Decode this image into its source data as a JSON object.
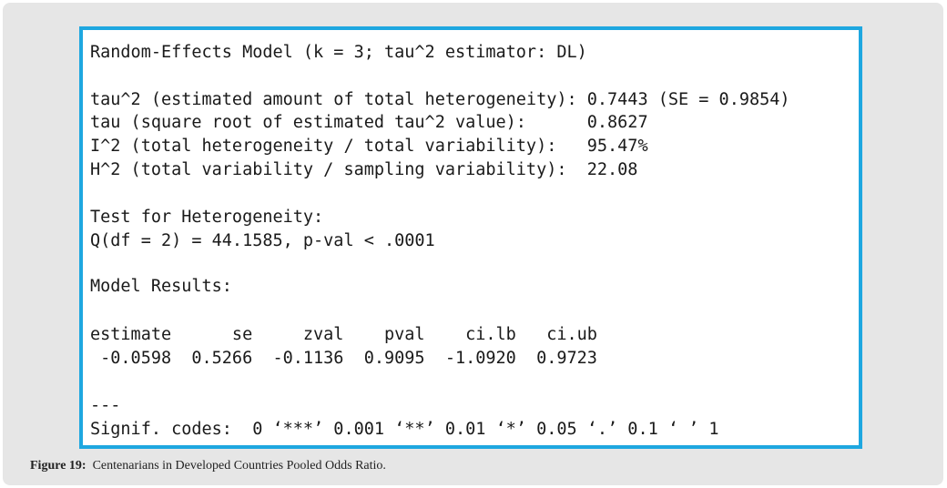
{
  "output": {
    "model_header": "Random-Effects Model (k = 3; tau^2 estimator: DL)",
    "tau2_line": "tau^2 (estimated amount of total heterogeneity): 0.7443 (SE = 0.9854)",
    "tau_line": "tau (square root of estimated tau^2 value):      0.8627",
    "i2_line": "I^2 (total heterogeneity / total variability):   95.47%",
    "h2_line": "H^2 (total variability / sampling variability):  22.08",
    "het_title": "Test for Heterogeneity:",
    "het_result": "Q(df = 2) = 44.1585, p-val < .0001",
    "results_title": "Model Results:",
    "results_header": "estimate      se     zval    pval    ci.lb   ci.ub",
    "results_values": " -0.0598  0.5266  -0.1136  0.9095  -1.0920  0.9723",
    "separator": "---",
    "signif_codes": "Signif. codes:  0 ‘***’ 0.001 ‘**’ 0.01 ‘*’ 0.05 ‘.’ 0.1 ‘ ’ 1"
  },
  "caption": {
    "label": "Figure 19:",
    "text": "Centenarians in Developed Countries Pooled Odds Ratio."
  },
  "colors": {
    "frame_border": "#1ea7e0",
    "panel_background": "#e6e6e6"
  }
}
